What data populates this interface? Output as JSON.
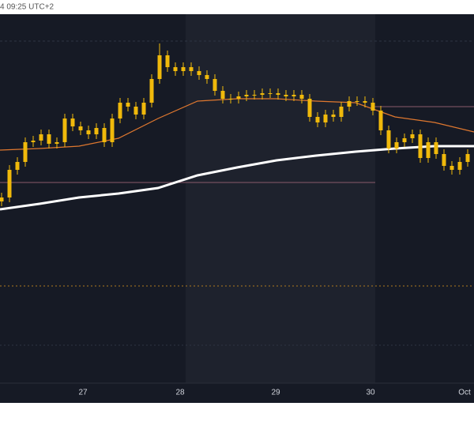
{
  "chart_data": {
    "type": "candlestick",
    "timestamp": "4 09:25 UTC+2",
    "x_labels": [
      "27",
      "28",
      "29",
      "30",
      "Oct"
    ],
    "color": "#f0b90b",
    "open": [
      145,
      150,
      185,
      195,
      220,
      222,
      230,
      218,
      220,
      250,
      240,
      235,
      230,
      238,
      220,
      250,
      270,
      265,
      255,
      270,
      300,
      330,
      315,
      310,
      315,
      310,
      305,
      300,
      285,
      275,
      275,
      278,
      280,
      280,
      282,
      282,
      280,
      278,
      280,
      275,
      252,
      245,
      255,
      252,
      265,
      272,
      272,
      270,
      260,
      235,
      212,
      220,
      225,
      230,
      200,
      220,
      205,
      190,
      185,
      195
    ],
    "high": [
      156,
      191,
      201,
      226,
      228,
      236,
      236,
      226,
      256,
      256,
      246,
      241,
      244,
      244,
      256,
      276,
      276,
      271,
      276,
      306,
      345,
      336,
      321,
      321,
      321,
      316,
      311,
      306,
      291,
      281,
      284,
      286,
      286,
      288,
      288,
      288,
      286,
      286,
      286,
      281,
      258,
      261,
      261,
      271,
      278,
      278,
      278,
      276,
      266,
      241,
      226,
      231,
      236,
      236,
      226,
      226,
      211,
      196,
      201,
      211
    ],
    "low": [
      139,
      144,
      179,
      189,
      214,
      216,
      212,
      212,
      214,
      234,
      229,
      224,
      224,
      214,
      214,
      244,
      259,
      249,
      249,
      264,
      294,
      309,
      304,
      304,
      304,
      299,
      294,
      279,
      269,
      269,
      269,
      272,
      274,
      274,
      276,
      274,
      272,
      272,
      269,
      246,
      239,
      239,
      246,
      246,
      259,
      266,
      264,
      254,
      229,
      206,
      206,
      214,
      219,
      194,
      194,
      199,
      184,
      179,
      179,
      189
    ],
    "close": [
      150,
      185,
      195,
      220,
      222,
      230,
      218,
      220,
      250,
      240,
      235,
      230,
      238,
      220,
      250,
      270,
      265,
      255,
      270,
      300,
      330,
      315,
      310,
      315,
      310,
      305,
      300,
      285,
      275,
      275,
      278,
      280,
      280,
      282,
      282,
      280,
      278,
      280,
      275,
      252,
      245,
      255,
      252,
      265,
      272,
      272,
      270,
      260,
      235,
      212,
      220,
      225,
      230,
      200,
      220,
      205,
      190,
      185,
      195,
      205
    ],
    "series": [
      {
        "color": "#e0782f",
        "values": [
          210,
          212,
          215,
          225,
          250,
          272,
          275,
          275,
          272,
          270,
          252,
          245,
          233
        ]
      },
      {
        "color": "#ffffff",
        "values": [
          135,
          142,
          150,
          155,
          162,
          178,
          188,
          197,
          203,
          208,
          212,
          215,
          215
        ]
      }
    ]
  }
}
